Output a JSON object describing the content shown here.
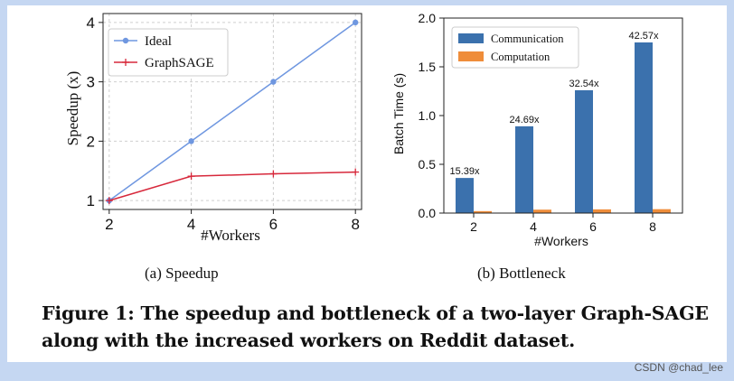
{
  "chart_data": [
    {
      "type": "line",
      "x": [
        2,
        4,
        6,
        8
      ],
      "series": [
        {
          "name": "Ideal",
          "values": [
            1,
            2,
            3,
            4
          ],
          "color": "#6f97e0",
          "marker": "circle"
        },
        {
          "name": "GraphSAGE",
          "values": [
            1,
            1.41,
            1.45,
            1.48
          ],
          "color": "#d7283b",
          "marker": "plus"
        }
      ],
      "xlabel": "#Workers",
      "ylabel": "Speedup (x)",
      "xticks": [
        "2",
        "4",
        "6",
        "8"
      ],
      "yticks": [
        "1",
        "2",
        "3",
        "4"
      ],
      "xlim": [
        1.85,
        8.15
      ],
      "ylim": [
        0.85,
        4.15
      ],
      "grid": true,
      "legend": "top-left",
      "subcaption": "(a)  Speedup"
    },
    {
      "type": "bar",
      "categories": [
        "2",
        "4",
        "6",
        "8"
      ],
      "series": [
        {
          "name": "Communication",
          "values": [
            0.36,
            0.89,
            1.26,
            1.75
          ],
          "color": "#3b71ad"
        },
        {
          "name": "Computation",
          "values": [
            0.02,
            0.035,
            0.038,
            0.04
          ],
          "color": "#ef8d3a"
        }
      ],
      "data_labels": [
        "15.39x",
        "24.69x",
        "32.54x",
        "42.57x"
      ],
      "xlabel": "#Workers",
      "ylabel": "Batch Time (s)",
      "yticks": [
        "0.0",
        "0.5",
        "1.0",
        "1.5",
        "2.0"
      ],
      "ylim": [
        0,
        2.0
      ],
      "grid": false,
      "legend": "top-left",
      "subcaption": "(b)  Bottleneck"
    }
  ],
  "caption": "Figure 1: The speedup and bottleneck of a two-layer Graph-SAGE along with the increased workers on Reddit dataset.",
  "watermark": "CSDN @chad_lee"
}
